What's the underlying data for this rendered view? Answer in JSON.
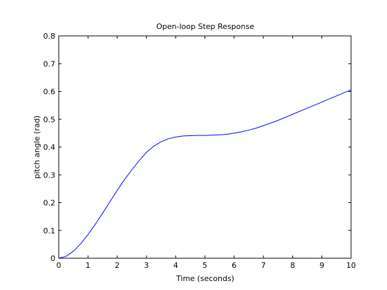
{
  "chart_data": {
    "type": "line",
    "title": "Open-loop Step Response",
    "xlabel": "Time (seconds)",
    "ylabel": "pitch angle (rad)",
    "xlim": [
      0,
      10
    ],
    "ylim": [
      0,
      0.8
    ],
    "xticks": [
      "0",
      "1",
      "2",
      "3",
      "4",
      "5",
      "6",
      "7",
      "8",
      "9",
      "10"
    ],
    "yticks": [
      "0",
      "0.1",
      "0.2",
      "0.3",
      "0.4",
      "0.5",
      "0.6",
      "0.7",
      "0.8"
    ],
    "grid": false,
    "legend": false,
    "line_color": "#0000ff",
    "series": [
      {
        "x": [
          0,
          0.25,
          0.5,
          0.75,
          1.0,
          1.25,
          1.5,
          1.75,
          2.0,
          2.25,
          2.5,
          2.75,
          3.0,
          3.25,
          3.5,
          3.75,
          4.0,
          4.25,
          4.5,
          4.75,
          5.0,
          5.25,
          5.5,
          5.75,
          6.0,
          6.25,
          6.5,
          6.75,
          7.0,
          7.5,
          8.0,
          8.5,
          9.0,
          9.5,
          10.0
        ],
        "y": [
          0,
          0.007,
          0.025,
          0.052,
          0.085,
          0.122,
          0.162,
          0.203,
          0.244,
          0.283,
          0.318,
          0.351,
          0.381,
          0.403,
          0.419,
          0.43,
          0.436,
          0.44,
          0.441,
          0.442,
          0.442,
          0.443,
          0.444,
          0.446,
          0.45,
          0.455,
          0.461,
          0.468,
          0.477,
          0.496,
          0.518,
          0.54,
          0.562,
          0.584,
          0.606
        ]
      }
    ]
  }
}
